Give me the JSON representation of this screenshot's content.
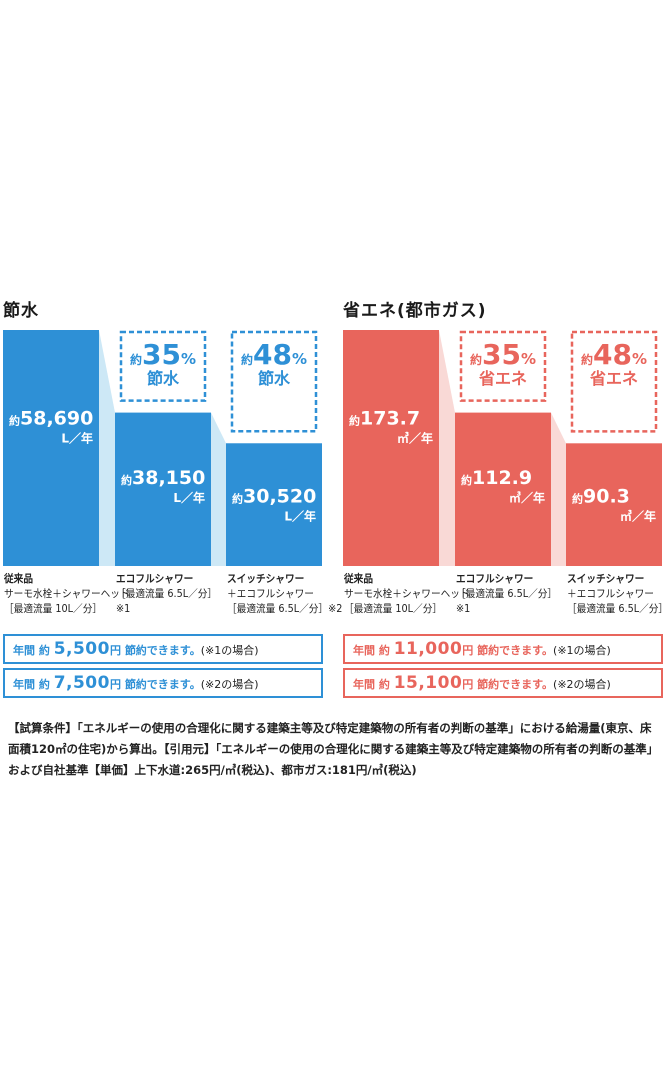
{
  "chart_data": [
    {
      "type": "bar",
      "title": "節水",
      "color": "#2e90d6",
      "highlight_color": "#cde8f6",
      "categories": [
        "従来品",
        "エコフルシャワー",
        "スイッチシャワー+エコフルシャワー"
      ],
      "category_details": [
        [
          "サーモ水栓＋シャワーヘッド",
          "［最適流量 10L／分］"
        ],
        [
          "［最適流量 6.5L／分］",
          "※1"
        ],
        [
          "＋エコフルシャワー",
          "［最適流量 6.5L／分］※2"
        ]
      ],
      "category_heads": [
        "従来品",
        "エコフルシャワー",
        "スイッチシャワー"
      ],
      "values": [
        58690,
        38150,
        30520
      ],
      "value_labels": [
        "58,690",
        "38,150",
        "30,520"
      ],
      "unit": "L／年",
      "prefix": "約",
      "reductions": [
        null,
        {
          "prefix": "約",
          "value": "35",
          "pct": "%",
          "word": "節水"
        },
        {
          "prefix": "約",
          "value": "48",
          "pct": "%",
          "word": "節水"
        }
      ],
      "ylim": [
        0,
        58690
      ],
      "savings": [
        {
          "label": "年間",
          "prefix": "約",
          "amount": "5,500",
          "unit": "円",
          "text": "節約できます。",
          "note": "(※1の場合)"
        },
        {
          "label": "年間",
          "prefix": "約",
          "amount": "7,500",
          "unit": "円",
          "text": "節約できます。",
          "note": "(※2の場合)"
        }
      ]
    },
    {
      "type": "bar",
      "title": "省エネ(都市ガス)",
      "color": "#e8655c",
      "highlight_color": "#f9d9d6",
      "categories": [
        "従来品",
        "エコフルシャワー",
        "スイッチシャワー+エコフルシャワー"
      ],
      "category_details": [
        [
          "サーモ水栓＋シャワーヘッド",
          "［最適流量 10L／分］"
        ],
        [
          "［最適流量 6.5L／分］",
          "※1"
        ],
        [
          "＋エコフルシャワー",
          "［最適流量 6.5L／分］※2"
        ]
      ],
      "category_heads": [
        "従来品",
        "エコフルシャワー",
        "スイッチシャワー"
      ],
      "values": [
        173.7,
        112.9,
        90.3
      ],
      "value_labels": [
        "173.7",
        "112.9",
        "90.3"
      ],
      "unit": "㎥／年",
      "prefix": "約",
      "reductions": [
        null,
        {
          "prefix": "約",
          "value": "35",
          "pct": "%",
          "word": "省エネ"
        },
        {
          "prefix": "約",
          "value": "48",
          "pct": "%",
          "word": "省エネ"
        }
      ],
      "ylim": [
        0,
        173.7
      ],
      "savings": [
        {
          "label": "年間",
          "prefix": "約",
          "amount": "11,000",
          "unit": "円",
          "text": "節約できます。",
          "note": "(※1の場合)"
        },
        {
          "label": "年間",
          "prefix": "約",
          "amount": "15,100",
          "unit": "円",
          "text": "節約できます。",
          "note": "(※2の場合)"
        }
      ]
    }
  ],
  "footnote": "【試算条件】「エネルギーの使用の合理化に関する建築主等及び特定建築物の所有者の判断の基準」における給湯量(東京、床面積120㎡の住宅)から算出。【引用元】「エネルギーの使用の合理化に関する建築主等及び特定建築物の所有者の判断の基準」および自社基準【単価】上下水道:265円/㎥(税込)、都市ガス:181円/㎥(税込)"
}
